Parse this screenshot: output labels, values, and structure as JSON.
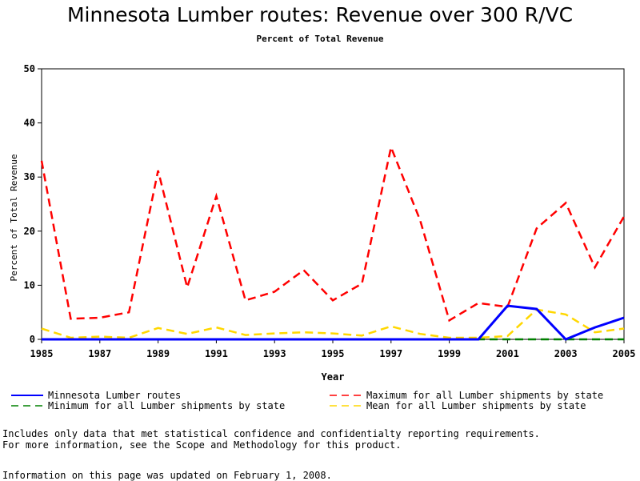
{
  "chart_data": {
    "type": "line",
    "title": "Minnesota Lumber routes: Revenue over 300 R/VC",
    "subtitle": "Percent of Total Revenue",
    "xlabel": "Year",
    "ylabel": "Percent of Total Revenue",
    "xlim": [
      1985,
      2005
    ],
    "ylim": [
      0,
      50
    ],
    "x_ticks": [
      1985,
      1987,
      1989,
      1991,
      1993,
      1995,
      1997,
      1999,
      2001,
      2003,
      2005
    ],
    "y_ticks": [
      0,
      10,
      20,
      30,
      40,
      50
    ],
    "grid": false,
    "legend_position": "bottom",
    "x": [
      1985,
      1986,
      1987,
      1988,
      1989,
      1990,
      1991,
      1992,
      1993,
      1994,
      1995,
      1996,
      1997,
      1998,
      1999,
      2000,
      2001,
      2002,
      2003,
      2004,
      2005
    ],
    "series": [
      {
        "name": "Minnesota Lumber routes",
        "color": "#0000ff",
        "style": "solid",
        "values": [
          0,
          0,
          0,
          0,
          0,
          0,
          0,
          0,
          0,
          0,
          0,
          0,
          0,
          0,
          0,
          0,
          6.2,
          5.6,
          0,
          2.2,
          4.0
        ]
      },
      {
        "name": "Maximum for all Lumber shipments by state",
        "color": "#ff0000",
        "style": "dashed",
        "values": [
          33.0,
          3.8,
          4.0,
          5.0,
          31.2,
          9.6,
          26.5,
          7.2,
          8.8,
          12.8,
          7.2,
          10.3,
          35.5,
          22.0,
          3.5,
          6.7,
          6.0,
          20.5,
          25.2,
          13.3,
          22.7
        ]
      },
      {
        "name": "Minimum for all Lumber shipments by state",
        "color": "#008000",
        "style": "dashed",
        "values": [
          0,
          0,
          0,
          0,
          0,
          0,
          0,
          0,
          0,
          0,
          0,
          0,
          0,
          0,
          0,
          0,
          0,
          0,
          0,
          0,
          0
        ]
      },
      {
        "name": "Mean for all Lumber shipments by state",
        "color": "#ffd700",
        "style": "dashed",
        "values": [
          2.0,
          0.3,
          0.5,
          0.3,
          2.1,
          1.0,
          2.2,
          0.8,
          1.1,
          1.3,
          1.1,
          0.7,
          2.4,
          1.0,
          0.3,
          0.3,
          0.6,
          5.5,
          4.6,
          1.3,
          2.0
        ]
      }
    ]
  },
  "notes": {
    "line1": "Includes only data that met statistical confidence and confidentialty reporting requirements.",
    "line2": "For more information, see the Scope and Methodology for this product.",
    "updated": "Information on this page was updated on February 1, 2008."
  }
}
